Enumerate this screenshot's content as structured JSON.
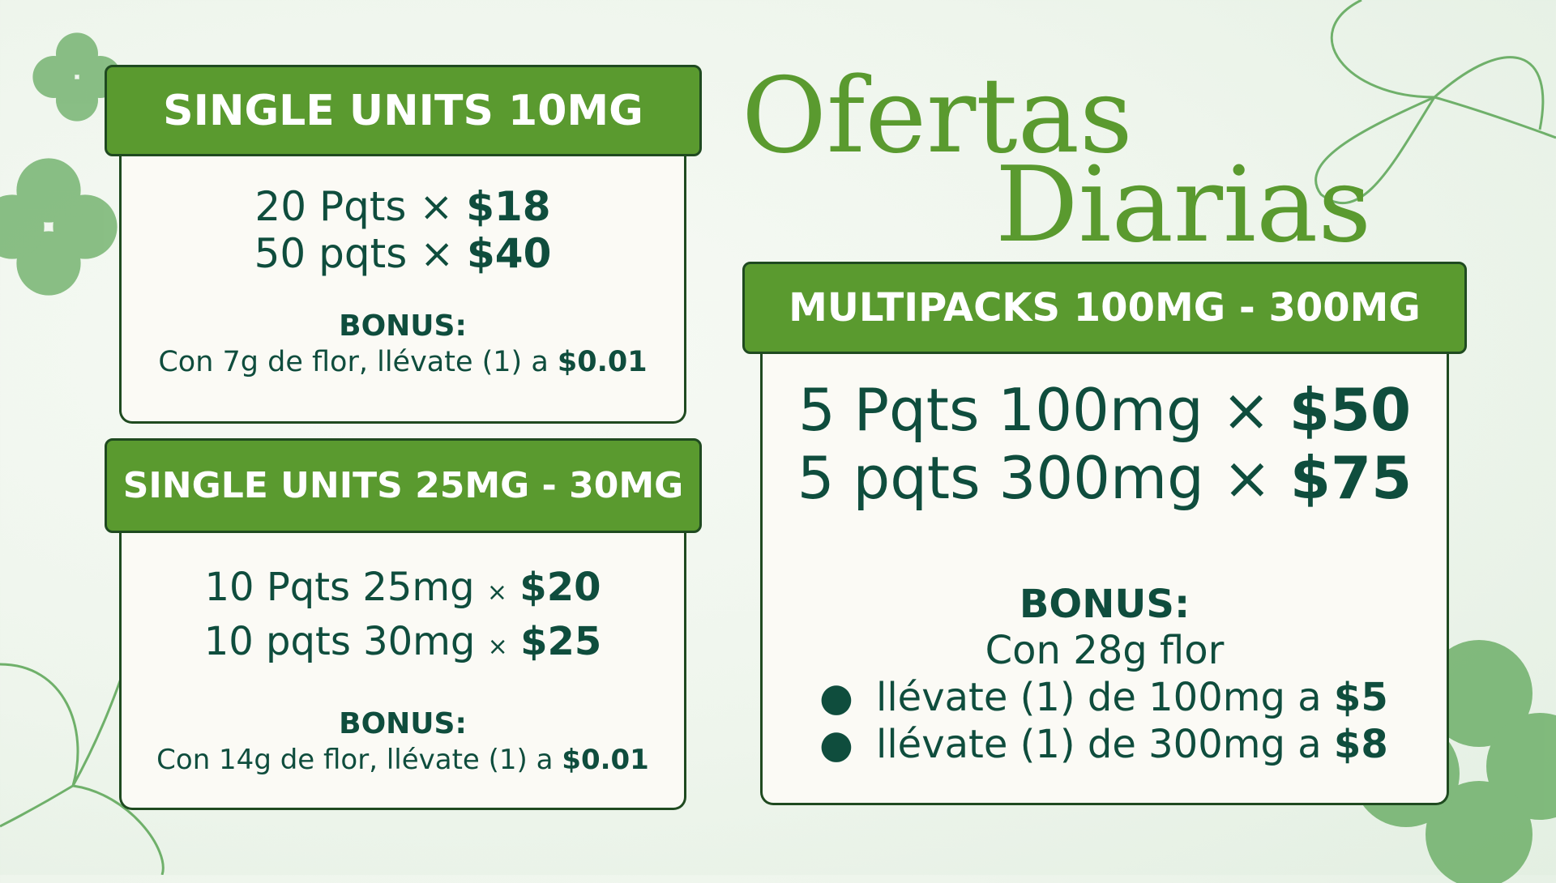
{
  "title": {
    "line1": "Ofertas",
    "line2": "Diarias"
  },
  "colors": {
    "header_green": "#5a9a2f",
    "border": "#1f4a20",
    "text": "#0f4d3d",
    "title": "#5a9a2f"
  },
  "cards": [
    {
      "header": "SINGLE UNITS 10MG",
      "offers": [
        {
          "qty": "20 Pqts",
          "sep": "×",
          "price": "$18"
        },
        {
          "qty": "50 pqts",
          "sep": "×",
          "price": "$40"
        }
      ],
      "bonus_label": "BONUS:",
      "bonus_text": "Con 7g de flor, llévate (1) a",
      "bonus_price": "$0.01"
    },
    {
      "header": "SINGLE UNITS 25MG - 30MG",
      "offers": [
        {
          "qty": "10 Pqts 25mg",
          "sep": "×",
          "price": "$20"
        },
        {
          "qty": "10 pqts 30mg",
          "sep": "×",
          "price": "$25"
        }
      ],
      "bonus_label": "BONUS:",
      "bonus_text": "Con 14g de flor, llévate (1) a",
      "bonus_price": "$0.01"
    },
    {
      "header": "MULTIPACKS 100MG - 300MG",
      "offers": [
        {
          "qty": "5 Pqts 100mg",
          "sep": "×",
          "price": "$50"
        },
        {
          "qty": "5 pqts 300mg",
          "sep": "×",
          "price": "$75"
        }
      ],
      "bonus_label": "BONUS:",
      "bonus_text": "Con 28g flor",
      "bonus_items": [
        {
          "text": "llévate (1) de 100mg a",
          "price": "$5"
        },
        {
          "text": "llévate (1) de 300mg a",
          "price": "$8"
        }
      ]
    }
  ],
  "icons": [
    "clover-icon",
    "bullet-icon"
  ]
}
